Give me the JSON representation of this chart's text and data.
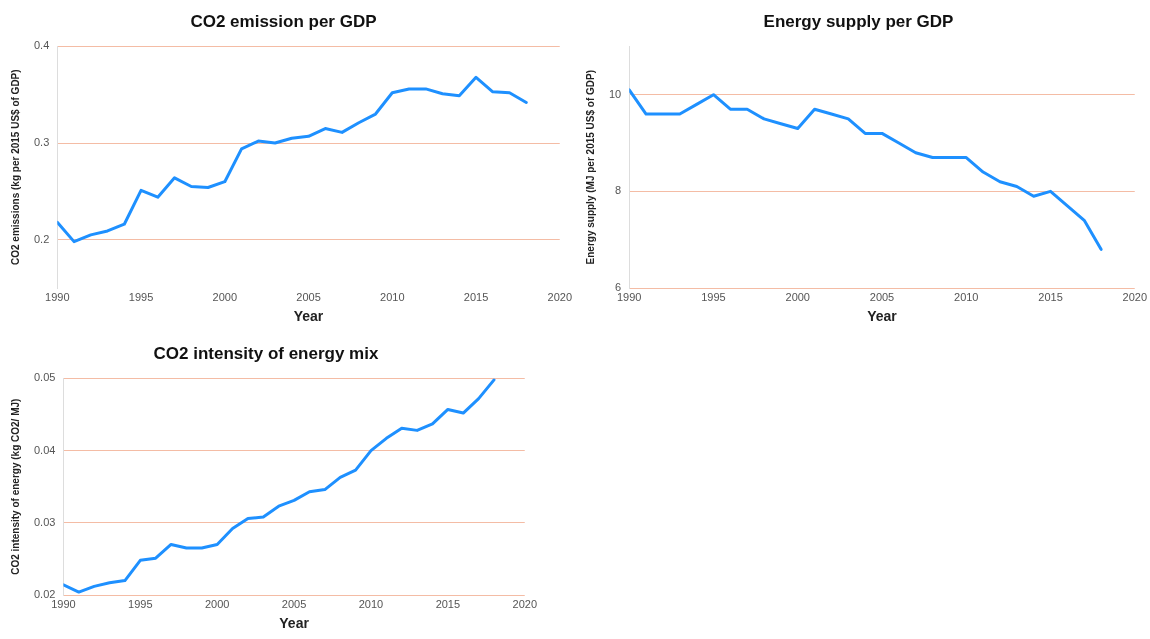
{
  "chart_data": [
    {
      "type": "line",
      "title": "CO2 emission per GDP",
      "xlabel": "Year",
      "ylabel": "CO2 emissions (kg per 2015 US$ of GDP)",
      "x": [
        1990,
        1991,
        1992,
        1993,
        1994,
        1995,
        1996,
        1997,
        1998,
        1999,
        2000,
        2001,
        2002,
        2003,
        2004,
        2005,
        2006,
        2007,
        2008,
        2009,
        2010,
        2011,
        2012,
        2013,
        2014,
        2015,
        2016,
        2017,
        2018
      ],
      "series": [
        {
          "color": "#1e90ff",
          "values": [
            0.218,
            0.198,
            0.205,
            0.209,
            0.216,
            0.251,
            0.244,
            0.264,
            0.255,
            0.254,
            0.26,
            0.294,
            0.302,
            0.3,
            0.305,
            0.307,
            0.315,
            0.311,
            0.321,
            0.33,
            0.352,
            0.356,
            0.356,
            0.351,
            0.349,
            0.368,
            0.353,
            0.352,
            0.342
          ]
        }
      ],
      "xlim": [
        1990,
        2020
      ],
      "xticks": [
        1990,
        1995,
        2000,
        2005,
        2010,
        2015,
        2020
      ],
      "ylim": [
        0.15,
        0.4
      ],
      "yticks": [
        0.2,
        0.3,
        0.4
      ],
      "grid": "y",
      "legend": false,
      "marker": "none",
      "line_style": "solid"
    },
    {
      "type": "line",
      "title": "Energy supply per GDP",
      "xlabel": "Year",
      "ylabel": "Energy supply (MJ per 2015 US$ of GDP)",
      "x": [
        1990,
        1991,
        1992,
        1993,
        1994,
        1995,
        1996,
        1997,
        1998,
        1999,
        2000,
        2001,
        2002,
        2003,
        2004,
        2005,
        2006,
        2007,
        2008,
        2009,
        2010,
        2011,
        2012,
        2013,
        2014,
        2015,
        2016,
        2017,
        2018
      ],
      "series": [
        {
          "color": "#1e90ff",
          "values": [
            10.1,
            9.6,
            9.6,
            9.6,
            9.8,
            10.0,
            9.7,
            9.7,
            9.5,
            9.4,
            9.3,
            9.7,
            9.6,
            9.5,
            9.2,
            9.2,
            9.0,
            8.8,
            8.7,
            8.7,
            8.7,
            8.4,
            8.2,
            8.1,
            7.9,
            8.0,
            7.7,
            7.4,
            6.8
          ]
        }
      ],
      "xlim": [
        1990,
        2020
      ],
      "xticks": [
        1990,
        1995,
        2000,
        2005,
        2010,
        2015,
        2020
      ],
      "ylim": [
        6,
        11
      ],
      "yticks": [
        6,
        8,
        10
      ],
      "grid": "y",
      "legend": false,
      "marker": "none",
      "line_style": "solid"
    },
    {
      "type": "line",
      "title": "CO2 intensity of energy mix",
      "xlabel": "Year",
      "ylabel": "CO2 intensity of energy (kg CO2/ MJ)",
      "x": [
        1990,
        1991,
        1992,
        1993,
        1994,
        1995,
        1996,
        1997,
        1998,
        1999,
        2000,
        2001,
        2002,
        2003,
        2004,
        2005,
        2006,
        2007,
        2008,
        2009,
        2010,
        2011,
        2012,
        2013,
        2014,
        2015,
        2016,
        2017,
        2018
      ],
      "series": [
        {
          "color": "#1e90ff",
          "values": [
            0.0214,
            0.0204,
            0.0212,
            0.0217,
            0.022,
            0.0248,
            0.0251,
            0.027,
            0.0265,
            0.0265,
            0.027,
            0.0292,
            0.0306,
            0.0308,
            0.0323,
            0.0331,
            0.0343,
            0.0346,
            0.0363,
            0.0373,
            0.04,
            0.0417,
            0.0431,
            0.0428,
            0.0437,
            0.0457,
            0.0452,
            0.0472,
            0.0498
          ]
        }
      ],
      "xlim": [
        1990,
        2020
      ],
      "xticks": [
        1990,
        1995,
        2000,
        2005,
        2010,
        2015,
        2020
      ],
      "ylim": [
        0.02,
        0.05
      ],
      "yticks": [
        0.02,
        0.03,
        0.04,
        0.05
      ],
      "grid": "y",
      "legend": false,
      "marker": "none",
      "line_style": "solid"
    }
  ]
}
